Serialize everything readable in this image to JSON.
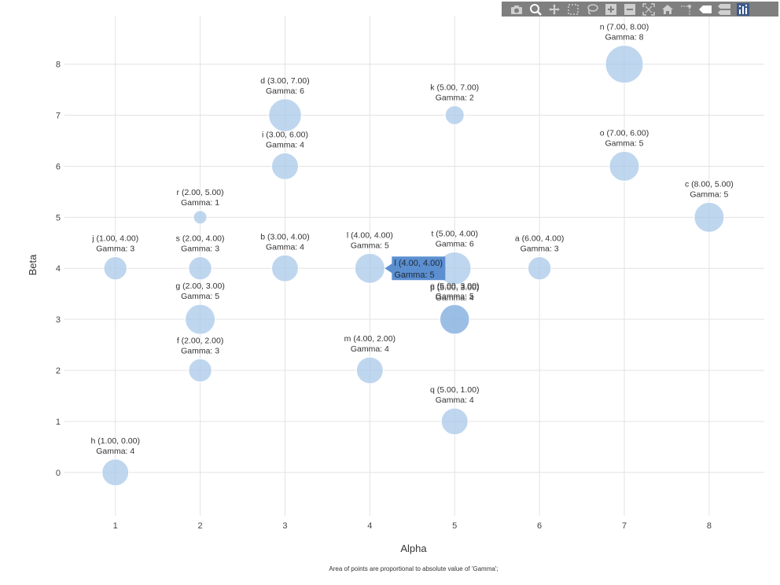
{
  "chart_data": {
    "type": "scatter",
    "xlabel": "Alpha",
    "ylabel": "Beta",
    "xticks": [
      "1",
      "2",
      "3",
      "4",
      "5",
      "6",
      "7",
      "8"
    ],
    "yticks": [
      "0",
      "1",
      "2",
      "3",
      "4",
      "5",
      "6",
      "7",
      "8"
    ],
    "xlim": [
      0.4,
      8.65
    ],
    "ylim": [
      -0.85,
      8.95
    ],
    "size_field": "Gamma",
    "note": "Area of points are proportional to absolute value of 'Gamma';",
    "grid": true,
    "points": [
      {
        "name": "a",
        "x": 6,
        "y": 4,
        "gamma": 3,
        "label": "a (6.00, 4.00)",
        "gamma_label": "Gamma: 3"
      },
      {
        "name": "b",
        "x": 3,
        "y": 4,
        "gamma": 4,
        "label": "b (3.00, 4.00)",
        "gamma_label": "Gamma: 4"
      },
      {
        "name": "c",
        "x": 8,
        "y": 5,
        "gamma": 5,
        "label": "c (8.00, 5.00)",
        "gamma_label": "Gamma: 5"
      },
      {
        "name": "d",
        "x": 3,
        "y": 7,
        "gamma": 6,
        "label": "d (3.00, 7.00)",
        "gamma_label": "Gamma: 6"
      },
      {
        "name": "e",
        "x": 5,
        "y": 3,
        "gamma": 5,
        "label": "e (5.00, 3.00)",
        "gamma_label": "Gamma: 5"
      },
      {
        "name": "f",
        "x": 2,
        "y": 2,
        "gamma": 3,
        "label": "f (2.00, 2.00)",
        "gamma_label": "Gamma: 3"
      },
      {
        "name": "g",
        "x": 2,
        "y": 3,
        "gamma": 5,
        "label": "g (2.00, 3.00)",
        "gamma_label": "Gamma: 5"
      },
      {
        "name": "h",
        "x": 1,
        "y": 0,
        "gamma": 4,
        "label": "h (1.00, 0.00)",
        "gamma_label": "Gamma: 4"
      },
      {
        "name": "i",
        "x": 3,
        "y": 6,
        "gamma": 4,
        "label": "i (3.00, 6.00)",
        "gamma_label": "Gamma: 4"
      },
      {
        "name": "j",
        "x": 1,
        "y": 4,
        "gamma": 3,
        "label": "j (1.00, 4.00)",
        "gamma_label": "Gamma: 3"
      },
      {
        "name": "k",
        "x": 5,
        "y": 7,
        "gamma": 2,
        "label": "k (5.00, 7.00)",
        "gamma_label": "Gamma: 2"
      },
      {
        "name": "l",
        "x": 4,
        "y": 4,
        "gamma": 5,
        "label": "l (4.00, 4.00)",
        "gamma_label": "Gamma: 5"
      },
      {
        "name": "m",
        "x": 4,
        "y": 2,
        "gamma": 4,
        "label": "m (4.00, 2.00)",
        "gamma_label": "Gamma: 4"
      },
      {
        "name": "n",
        "x": 7,
        "y": 8,
        "gamma": 8,
        "label": "n (7.00, 8.00)",
        "gamma_label": "Gamma: 8"
      },
      {
        "name": "o",
        "x": 7,
        "y": 6,
        "gamma": 5,
        "label": "o (7.00, 6.00)",
        "gamma_label": "Gamma: 5"
      },
      {
        "name": "p",
        "x": 5,
        "y": 3,
        "gamma": 4,
        "label": "p (5.00, 3.00)",
        "gamma_label": "Gamma: 4"
      },
      {
        "name": "q",
        "x": 5,
        "y": 1,
        "gamma": 4,
        "label": "q (5.00, 1.00)",
        "gamma_label": "Gamma: 4"
      },
      {
        "name": "r",
        "x": 2,
        "y": 5,
        "gamma": 1,
        "label": "r (2.00, 5.00)",
        "gamma_label": "Gamma: 1"
      },
      {
        "name": "s",
        "x": 2,
        "y": 4,
        "gamma": 3,
        "label": "s (2.00, 4.00)",
        "gamma_label": "Gamma: 3"
      },
      {
        "name": "t",
        "x": 5,
        "y": 4,
        "gamma": 6,
        "label": "t (5.00, 4.00)",
        "gamma_label": "Gamma: 6"
      }
    ],
    "hover_tooltip": {
      "point": "l",
      "line1": "l (4.00, 4.00)",
      "line2": "Gamma: 5"
    },
    "colors": {
      "bubble": "#a9c8ea",
      "tooltip": "#5b8fd0"
    }
  },
  "toolbar": {
    "buttons": [
      {
        "name": "camera-icon",
        "active": false
      },
      {
        "name": "zoom-icon",
        "active": true
      },
      {
        "name": "pan-icon",
        "active": false
      },
      {
        "name": "box-select-icon",
        "active": false
      },
      {
        "name": "lasso-icon",
        "active": false
      },
      {
        "name": "zoom-in-icon",
        "active": false
      },
      {
        "name": "zoom-out-icon",
        "active": false
      },
      {
        "name": "autoscale-icon",
        "active": false
      },
      {
        "name": "home-icon",
        "active": false
      },
      {
        "name": "spike-lines-icon",
        "active": false
      },
      {
        "name": "hover-closest-icon",
        "active": false
      },
      {
        "name": "hover-compare-icon",
        "active": false
      },
      {
        "name": "plotly-logo-icon",
        "active": false
      }
    ]
  }
}
